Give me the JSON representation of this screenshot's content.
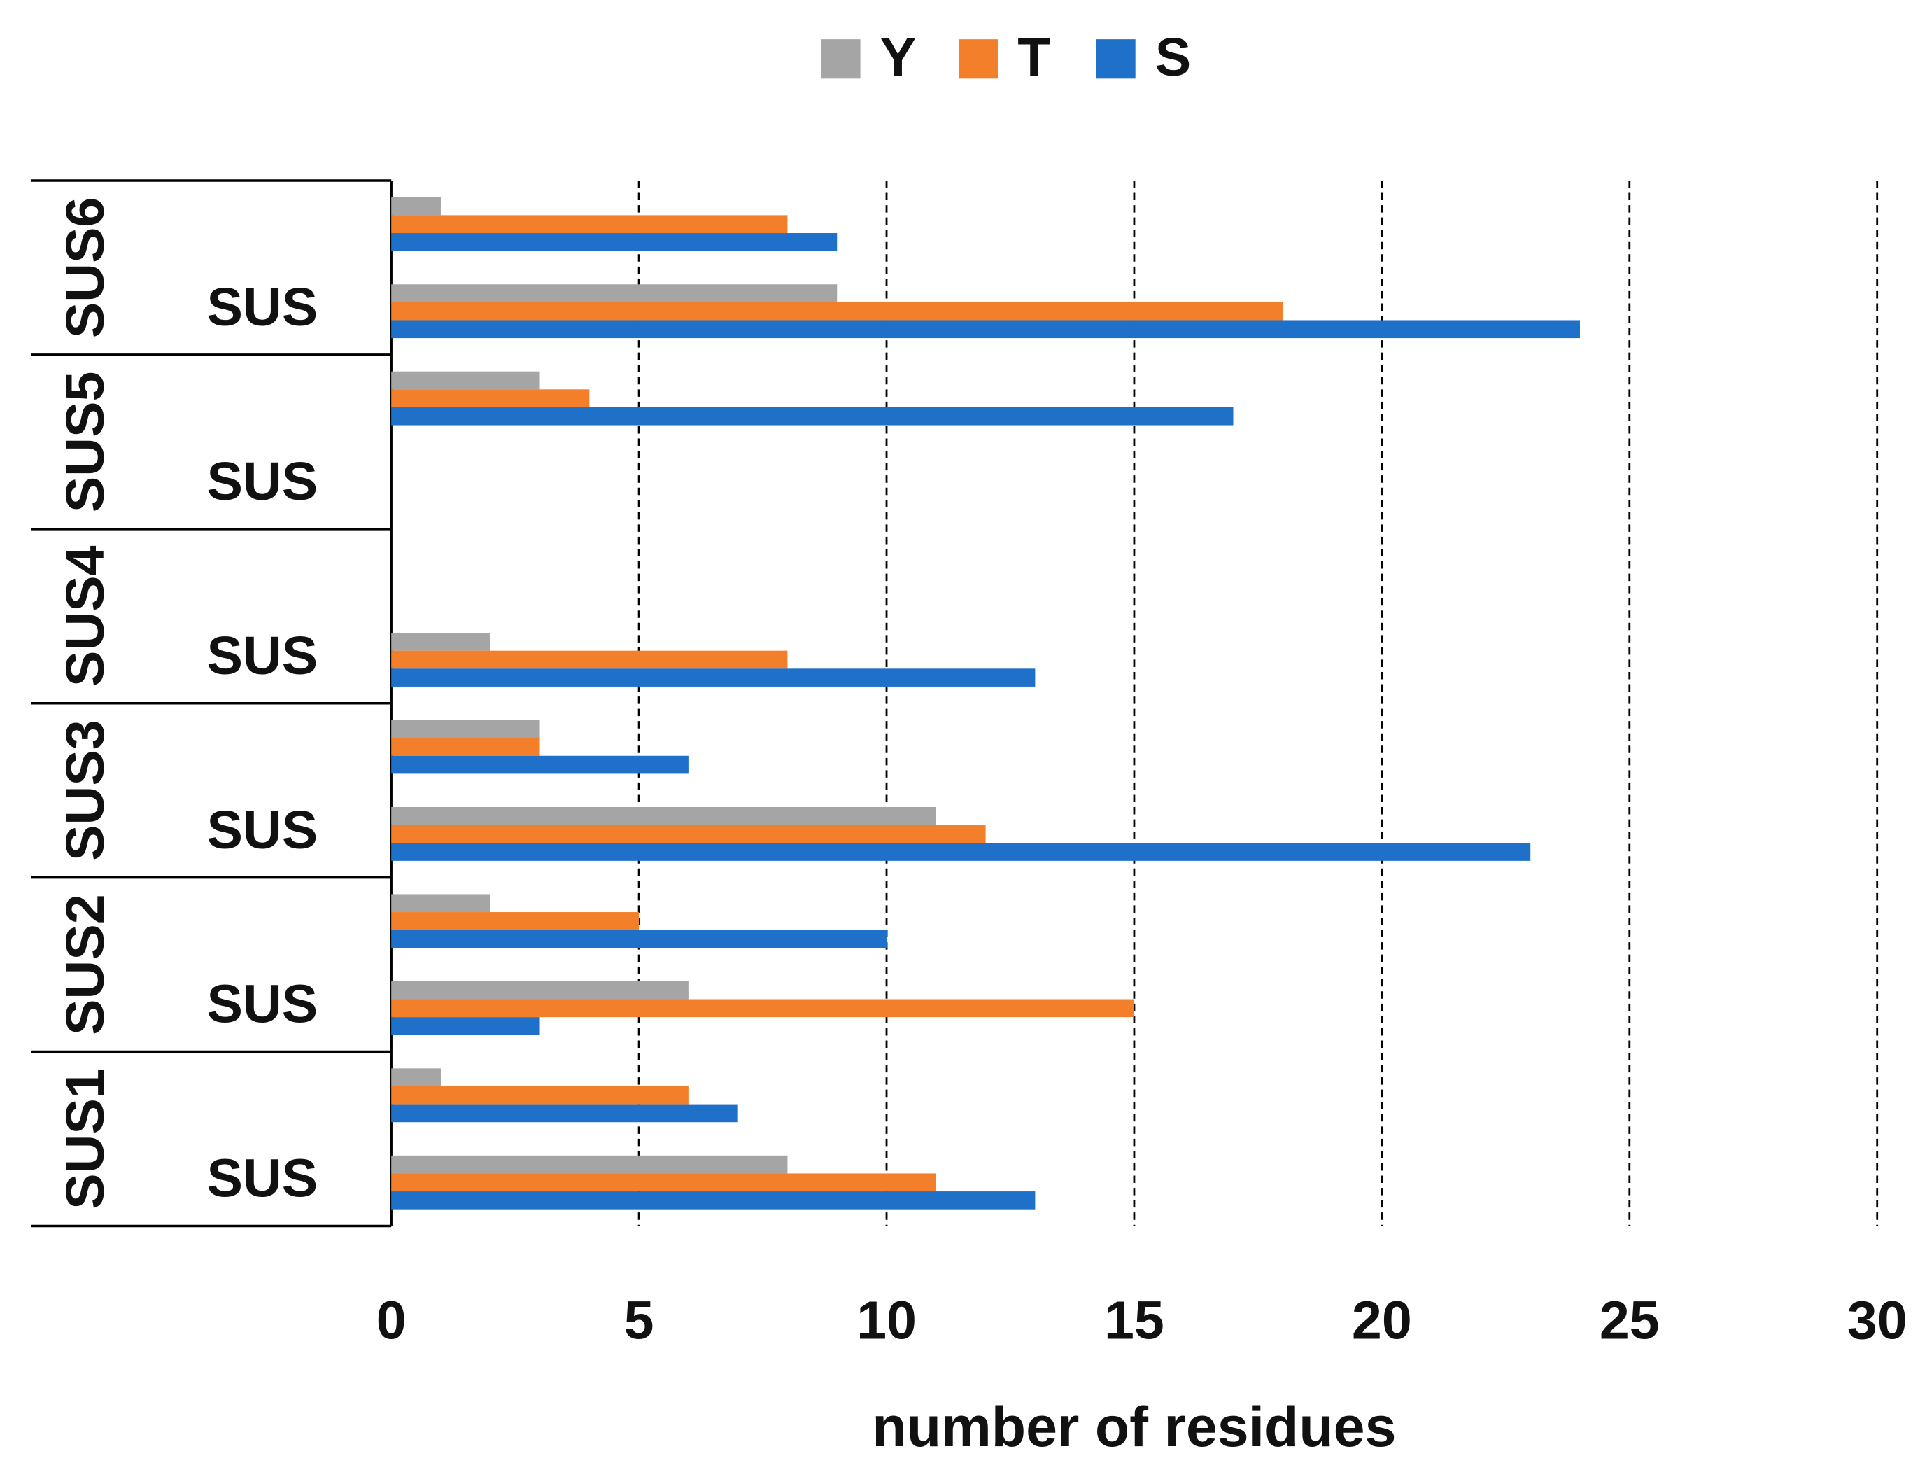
{
  "chart_data": {
    "type": "bar",
    "orientation": "horizontal",
    "xlabel": "number of residues",
    "categories": [
      "SUS",
      null,
      "SUS",
      null,
      "SUS",
      null,
      "SUS",
      null,
      "SUS",
      null,
      "SUS",
      null
    ],
    "groups": [
      "SUS1",
      "SUS2",
      "SUS3",
      "SUS4",
      "SUS5",
      "SUS6"
    ],
    "series": [
      {
        "name": "Y",
        "color": "#a5a5a5",
        "values": [
          8,
          1,
          6,
          2,
          11,
          3,
          2,
          0,
          0,
          3,
          9,
          1
        ]
      },
      {
        "name": "T",
        "color": "#f47f2a",
        "values": [
          11,
          6,
          15,
          5,
          12,
          3,
          8,
          0,
          0,
          4,
          18,
          8
        ]
      },
      {
        "name": "S",
        "color": "#1f70c9",
        "values": [
          13,
          7,
          3,
          10,
          23,
          6,
          13,
          0,
          0,
          17,
          24,
          9
        ]
      }
    ],
    "xlim": [
      0,
      30
    ],
    "xticks": [
      0,
      5,
      10,
      15,
      20,
      25,
      30
    ],
    "grid": true,
    "legend": "top"
  }
}
